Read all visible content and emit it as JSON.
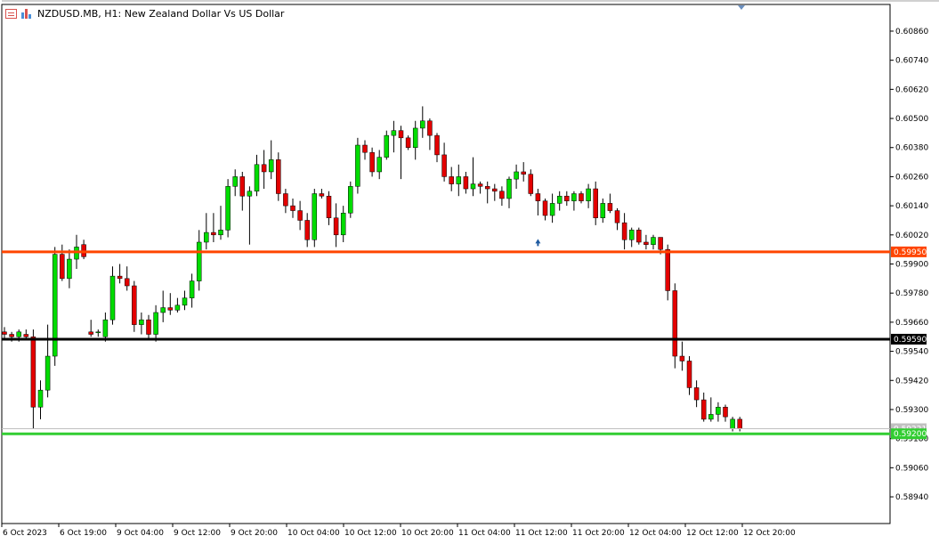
{
  "window": {
    "title": "NZDUSD.MB, H1:  New Zealand Dollar Vs US Dollar"
  },
  "icons": {
    "chart_settings": "chart-settings-icon",
    "chart_type": "bar-chart-icon",
    "arrow_marker": "arrow-up-icon",
    "scroll_marker": "triangle-down-icon"
  },
  "colors": {
    "bull": "#00dc00",
    "bear": "#e30000",
    "wick": "#000000",
    "line_orange": "#ff4500",
    "line_black": "#000000",
    "line_green": "#32cd32",
    "bid_line": "#c0c0c0",
    "arrow": "#1e5aa0"
  },
  "price_axis": {
    "min": 0.5883,
    "max": 0.6097,
    "labels": [
      "0.60860",
      "0.60740",
      "0.60620",
      "0.60500",
      "0.60380",
      "0.60260",
      "0.60140",
      "0.60020",
      "0.59900",
      "0.59780",
      "0.59660",
      "0.59540",
      "0.59420",
      "0.59300",
      "0.59180",
      "0.59060",
      "0.58940"
    ]
  },
  "time_axis": {
    "labels": [
      "6 Oct 2023",
      "6 Oct 19:00",
      "9 Oct 04:00",
      "9 Oct 12:00",
      "9 Oct 20:00",
      "10 Oct 04:00",
      "10 Oct 12:00",
      "10 Oct 20:00",
      "11 Oct 04:00",
      "11 Oct 12:00",
      "11 Oct 20:00",
      "12 Oct 04:00",
      "12 Oct 12:00",
      "12 Oct 20:00"
    ]
  },
  "levels": [
    {
      "name": "resistance-line",
      "price": 0.5995,
      "label": "0.59950",
      "color": "#ff4500"
    },
    {
      "name": "pivot-line",
      "price": 0.5959,
      "label": "0.59590",
      "color": "#000000"
    },
    {
      "name": "support-line",
      "price": 0.592,
      "label": "0.59200",
      "color": "#32cd32"
    }
  ],
  "bid": {
    "price": 0.59221,
    "label": "0.59221"
  },
  "chart_data": {
    "type": "candlestick",
    "symbol": "NZDUSD.MB",
    "timeframe": "H1",
    "candles": [
      [
        0.5962,
        0.5964,
        0.5959,
        0.5961
      ],
      [
        0.5961,
        0.5962,
        0.5958,
        0.596
      ],
      [
        0.596,
        0.5963,
        0.5958,
        0.5962
      ],
      [
        0.5961,
        0.5963,
        0.5959,
        0.596
      ],
      [
        0.596,
        0.5963,
        0.5922,
        0.5931
      ],
      [
        0.5931,
        0.5942,
        0.5926,
        0.5938
      ],
      [
        0.5938,
        0.5965,
        0.5935,
        0.5952
      ],
      [
        0.5952,
        0.5997,
        0.5948,
        0.5994
      ],
      [
        0.5994,
        0.5998,
        0.5983,
        0.5984
      ],
      [
        0.5984,
        0.5996,
        0.598,
        0.5992
      ],
      [
        0.5992,
        0.6002,
        0.5988,
        0.5997
      ],
      [
        0.5998,
        0.6,
        0.5992,
        0.5993
      ],
      [
        0.5962,
        0.5967,
        0.596,
        0.5961
      ],
      [
        0.5962,
        0.5963,
        0.596,
        0.5962
      ],
      [
        0.596,
        0.597,
        0.5958,
        0.5967
      ],
      [
        0.5967,
        0.5989,
        0.5965,
        0.5985
      ],
      [
        0.5985,
        0.599,
        0.5982,
        0.5984
      ],
      [
        0.5984,
        0.5989,
        0.5979,
        0.5981
      ],
      [
        0.5981,
        0.5983,
        0.5962,
        0.5965
      ],
      [
        0.5965,
        0.597,
        0.5961,
        0.5967
      ],
      [
        0.5967,
        0.5969,
        0.5959,
        0.5961
      ],
      [
        0.5961,
        0.5973,
        0.5958,
        0.597
      ],
      [
        0.597,
        0.5979,
        0.5966,
        0.5972
      ],
      [
        0.5972,
        0.5978,
        0.5969,
        0.5971
      ],
      [
        0.5971,
        0.5976,
        0.597,
        0.5973
      ],
      [
        0.5973,
        0.5979,
        0.5971,
        0.5976
      ],
      [
        0.5976,
        0.5986,
        0.5972,
        0.5983
      ],
      [
        0.5983,
        0.6004,
        0.5979,
        0.5999
      ],
      [
        0.5999,
        0.6011,
        0.5996,
        0.6003
      ],
      [
        0.6003,
        0.6011,
        0.5999,
        0.6002
      ],
      [
        0.6002,
        0.6014,
        0.6,
        0.6004
      ],
      [
        0.6004,
        0.6025,
        0.6001,
        0.6022
      ],
      [
        0.6022,
        0.6029,
        0.6018,
        0.6026
      ],
      [
        0.6026,
        0.6028,
        0.6012,
        0.6018
      ],
      [
        0.6018,
        0.6022,
        0.5998,
        0.602
      ],
      [
        0.602,
        0.6035,
        0.6018,
        0.6031
      ],
      [
        0.6031,
        0.6037,
        0.6021,
        0.6028
      ],
      [
        0.6028,
        0.6041,
        0.6025,
        0.6033
      ],
      [
        0.6033,
        0.6036,
        0.6016,
        0.6019
      ],
      [
        0.6019,
        0.6021,
        0.6011,
        0.6014
      ],
      [
        0.6014,
        0.6017,
        0.6009,
        0.6012
      ],
      [
        0.6012,
        0.6016,
        0.6004,
        0.6008
      ],
      [
        0.6008,
        0.6011,
        0.5997,
        0.6
      ],
      [
        0.6,
        0.6021,
        0.5997,
        0.6019
      ],
      [
        0.6019,
        0.6021,
        0.6017,
        0.6018
      ],
      [
        0.6018,
        0.602,
        0.6006,
        0.6009
      ],
      [
        0.6009,
        0.6015,
        0.5997,
        0.6002
      ],
      [
        0.6002,
        0.6014,
        0.5999,
        0.6011
      ],
      [
        0.6011,
        0.6024,
        0.6009,
        0.6022
      ],
      [
        0.6022,
        0.6042,
        0.6019,
        0.6039
      ],
      [
        0.6039,
        0.6041,
        0.6033,
        0.6036
      ],
      [
        0.6036,
        0.6038,
        0.6026,
        0.6028
      ],
      [
        0.6028,
        0.6037,
        0.6025,
        0.6034
      ],
      [
        0.6034,
        0.6045,
        0.6033,
        0.6043
      ],
      [
        0.6043,
        0.6049,
        0.6036,
        0.6045
      ],
      [
        0.6045,
        0.6047,
        0.6025,
        0.6042
      ],
      [
        0.6042,
        0.6043,
        0.6037,
        0.6038
      ],
      [
        0.6038,
        0.6049,
        0.6033,
        0.6046
      ],
      [
        0.6046,
        0.6055,
        0.6042,
        0.6049
      ],
      [
        0.6049,
        0.605,
        0.6037,
        0.6043
      ],
      [
        0.6043,
        0.6044,
        0.6032,
        0.6035
      ],
      [
        0.6035,
        0.604,
        0.6024,
        0.6026
      ],
      [
        0.6026,
        0.603,
        0.602,
        0.6023
      ],
      [
        0.6023,
        0.6031,
        0.6018,
        0.6026
      ],
      [
        0.6026,
        0.6028,
        0.6019,
        0.6021
      ],
      [
        0.6021,
        0.6034,
        0.6018,
        0.6023
      ],
      [
        0.6023,
        0.6024,
        0.6019,
        0.6022
      ],
      [
        0.6022,
        0.6024,
        0.6015,
        0.6021
      ],
      [
        0.6021,
        0.6023,
        0.6016,
        0.602
      ],
      [
        0.602,
        0.6022,
        0.6014,
        0.6017
      ],
      [
        0.6017,
        0.6026,
        0.6013,
        0.6025
      ],
      [
        0.6025,
        0.6031,
        0.6021,
        0.6028
      ],
      [
        0.6028,
        0.6032,
        0.6024,
        0.6027
      ],
      [
        0.6027,
        0.6029,
        0.6018,
        0.6019
      ],
      [
        0.6019,
        0.6021,
        0.601,
        0.6016
      ],
      [
        0.6016,
        0.6017,
        0.6008,
        0.601
      ],
      [
        0.601,
        0.6019,
        0.6007,
        0.6015
      ],
      [
        0.6015,
        0.602,
        0.6012,
        0.6018
      ],
      [
        0.6018,
        0.602,
        0.6014,
        0.6016
      ],
      [
        0.6016,
        0.602,
        0.6012,
        0.6019
      ],
      [
        0.6019,
        0.602,
        0.6015,
        0.6016
      ],
      [
        0.6016,
        0.6023,
        0.6013,
        0.6021
      ],
      [
        0.6021,
        0.6024,
        0.6006,
        0.6009
      ],
      [
        0.6009,
        0.6017,
        0.6007,
        0.6015
      ],
      [
        0.6015,
        0.6019,
        0.6011,
        0.6012
      ],
      [
        0.6012,
        0.6013,
        0.6004,
        0.6007
      ],
      [
        0.6007,
        0.6011,
        0.5996,
        0.6
      ],
      [
        0.6,
        0.6005,
        0.5997,
        0.6004
      ],
      [
        0.6004,
        0.6005,
        0.5998,
        0.5999
      ],
      [
        0.5999,
        0.6002,
        0.5996,
        0.5998
      ],
      [
        0.5998,
        0.6002,
        0.5996,
        0.6001
      ],
      [
        0.6001,
        0.6001,
        0.5994,
        0.5996
      ],
      [
        0.5996,
        0.5998,
        0.5975,
        0.5979
      ],
      [
        0.5979,
        0.5982,
        0.5947,
        0.5952
      ],
      [
        0.5952,
        0.5958,
        0.5946,
        0.595
      ],
      [
        0.595,
        0.5952,
        0.5936,
        0.5939
      ],
      [
        0.5939,
        0.5942,
        0.5931,
        0.5934
      ],
      [
        0.5934,
        0.5937,
        0.5925,
        0.5926
      ],
      [
        0.5926,
        0.5935,
        0.5925,
        0.5928
      ],
      [
        0.5928,
        0.5933,
        0.5925,
        0.5931
      ],
      [
        0.5931,
        0.5932,
        0.5925,
        0.5927
      ],
      [
        0.5922,
        0.5927,
        0.5921,
        0.5926
      ],
      [
        0.5926,
        0.5927,
        0.5921,
        0.5922
      ]
    ],
    "arrow_marker": {
      "index": 74,
      "price": 0.6004
    }
  }
}
